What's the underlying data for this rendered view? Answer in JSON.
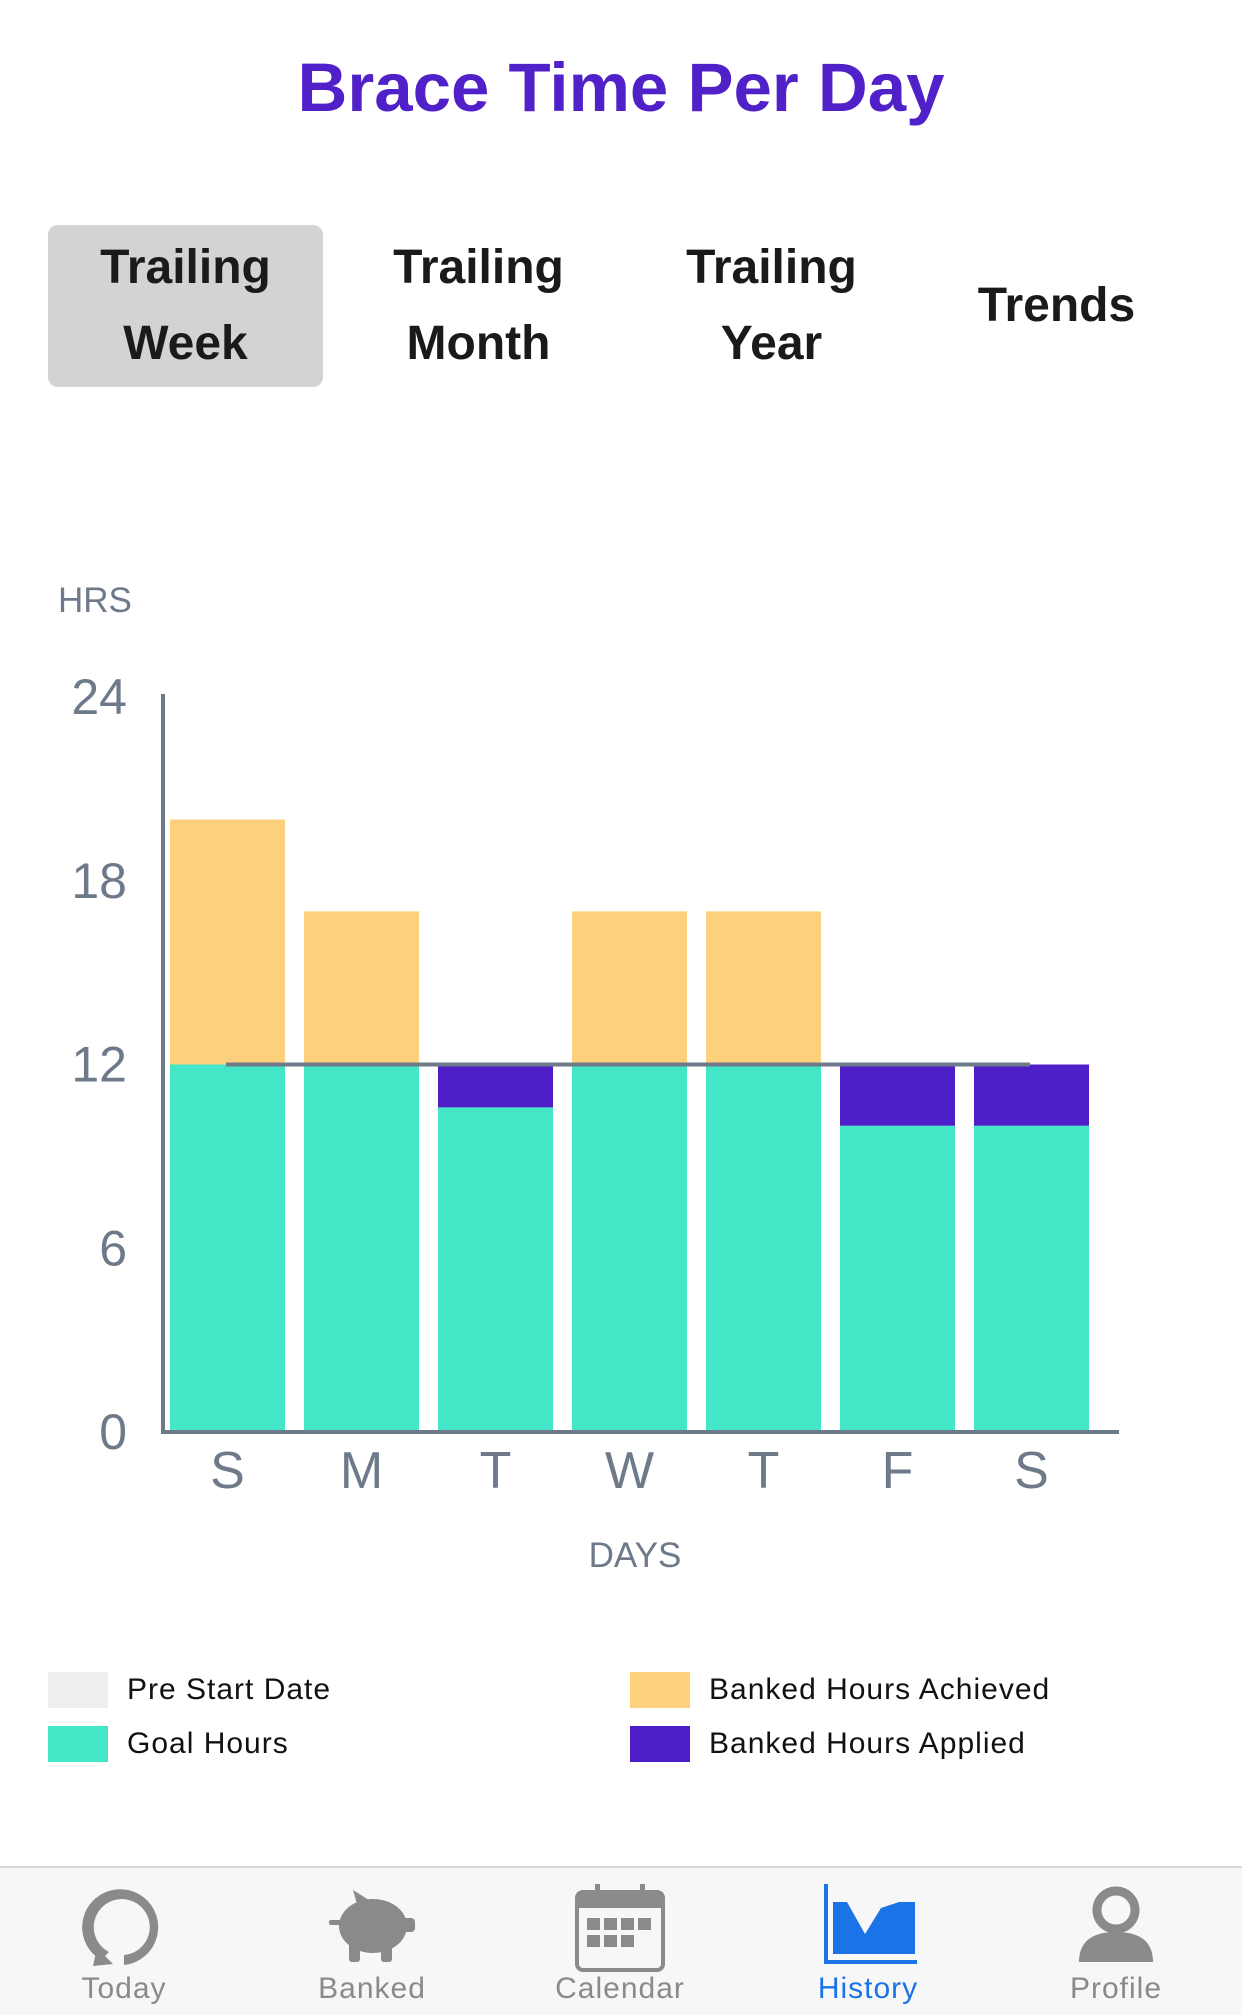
{
  "page_title": "Brace Time Per Day",
  "tabs": [
    {
      "label": "Trailing\nWeek",
      "active": true
    },
    {
      "label": "Trailing\nMonth",
      "active": false
    },
    {
      "label": "Trailing\nYear",
      "active": false
    },
    {
      "label": "Trends",
      "active": false
    }
  ],
  "chart_data": {
    "type": "bar",
    "stacked": true,
    "title": "",
    "ylabel": "HRS",
    "xlabel": "DAYS",
    "ylim": [
      0,
      24
    ],
    "yticks": [
      0,
      6,
      12,
      18,
      24
    ],
    "goal_line": 12,
    "categories": [
      "S",
      "M",
      "T",
      "W",
      "T",
      "F",
      "S"
    ],
    "series": [
      {
        "name": "Goal Hours",
        "color": "#44e6c8",
        "values": [
          12,
          12,
          10.6,
          12,
          12,
          10,
          10
        ]
      },
      {
        "name": "Banked Hours Applied",
        "color": "#4e1fc8",
        "values": [
          0,
          0,
          1.4,
          0,
          0,
          2,
          2
        ]
      },
      {
        "name": "Banked Hours Achieved",
        "color": "#fdd07e",
        "values": [
          8,
          5,
          0,
          5,
          5,
          0,
          0
        ]
      }
    ]
  },
  "legend": [
    {
      "label": "Pre Start Date",
      "color": "#eeeeee"
    },
    {
      "label": "Banked Hours Achieved",
      "color": "#fdd07e"
    },
    {
      "label": "Goal Hours",
      "color": "#44e6c8"
    },
    {
      "label": "Banked Hours Applied",
      "color": "#4e1fc8"
    }
  ],
  "tabbar": [
    {
      "label": "Today",
      "icon": "today-icon",
      "active": false
    },
    {
      "label": "Banked",
      "icon": "piggy-bank-icon",
      "active": false
    },
    {
      "label": "Calendar",
      "icon": "calendar-icon",
      "active": false
    },
    {
      "label": "History",
      "icon": "history-chart-icon",
      "active": true
    },
    {
      "label": "Profile",
      "icon": "profile-icon",
      "active": false
    }
  ],
  "colors": {
    "title": "#5020c8",
    "axis": "#6e7a8a",
    "tab_active_bg": "#d3d3d3",
    "tabbar_active": "#1a74e8",
    "tabbar_inactive": "#8a8a8a"
  }
}
